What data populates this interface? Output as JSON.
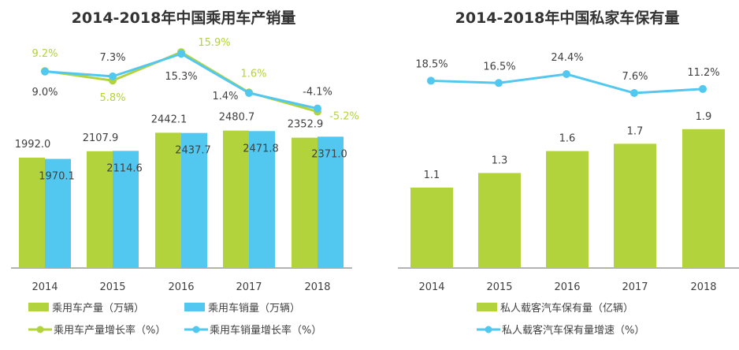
{
  "colors": {
    "green": "#b3d33c",
    "blue": "#52c8f0",
    "axis": "#9a9a9a",
    "text": "#404040"
  },
  "chart_data": [
    {
      "type": "bar+line",
      "title": "2014-2018年中国乘用车产销量",
      "categories": [
        "2014",
        "2015",
        "2016",
        "2017",
        "2018"
      ],
      "series": [
        {
          "name": "乘用车产量（万辆）",
          "kind": "bar",
          "color": "#b3d33c",
          "values": [
            1992.0,
            2107.9,
            2442.1,
            2480.7,
            2352.9
          ],
          "labels": [
            "1992.0",
            "2107.9",
            "2442.1",
            "2480.7",
            "2352.9"
          ]
        },
        {
          "name": "乘用车销量（万辆）",
          "kind": "bar",
          "color": "#52c8f0",
          "values": [
            1970.1,
            2114.6,
            2437.7,
            2471.8,
            2371.0
          ],
          "labels": [
            "1970.1",
            "2114.6",
            "2437.7",
            "2471.8",
            "2371.0"
          ]
        },
        {
          "name": "乘用车产量增长率（%）",
          "kind": "line",
          "color": "#b3d33c",
          "values": [
            9.2,
            5.8,
            15.9,
            1.6,
            -5.2
          ],
          "labels": [
            "9.2%",
            "5.8%",
            "15.9%",
            "1.6%",
            "-5.2%"
          ]
        },
        {
          "name": "乘用车销量增长率（%）",
          "kind": "line",
          "color": "#52c8f0",
          "values": [
            9.0,
            7.3,
            15.3,
            1.4,
            -4.1
          ],
          "labels": [
            "9.0%",
            "7.3%",
            "15.3%",
            "1.4%",
            "-4.1%"
          ]
        }
      ],
      "legend": "bottom",
      "grid": false
    },
    {
      "type": "bar+line",
      "title": "2014-2018年中国私家车保有量",
      "categories": [
        "2014",
        "2015",
        "2016",
        "2017",
        "2018"
      ],
      "series": [
        {
          "name": "私人载客汽车保有量（亿辆）",
          "kind": "bar",
          "color": "#b3d33c",
          "values": [
            1.1,
            1.3,
            1.6,
            1.7,
            1.9
          ],
          "labels": [
            "1.1",
            "1.3",
            "1.6",
            "1.7",
            "1.9"
          ]
        },
        {
          "name": "私人载客汽车保有量增速（%）",
          "kind": "line",
          "color": "#52c8f0",
          "values": [
            18.5,
            16.5,
            24.4,
            7.6,
            11.2
          ],
          "labels": [
            "18.5%",
            "16.5%",
            "24.4%",
            "7.6%",
            "11.2%"
          ]
        }
      ],
      "legend": "bottom",
      "grid": false
    }
  ]
}
